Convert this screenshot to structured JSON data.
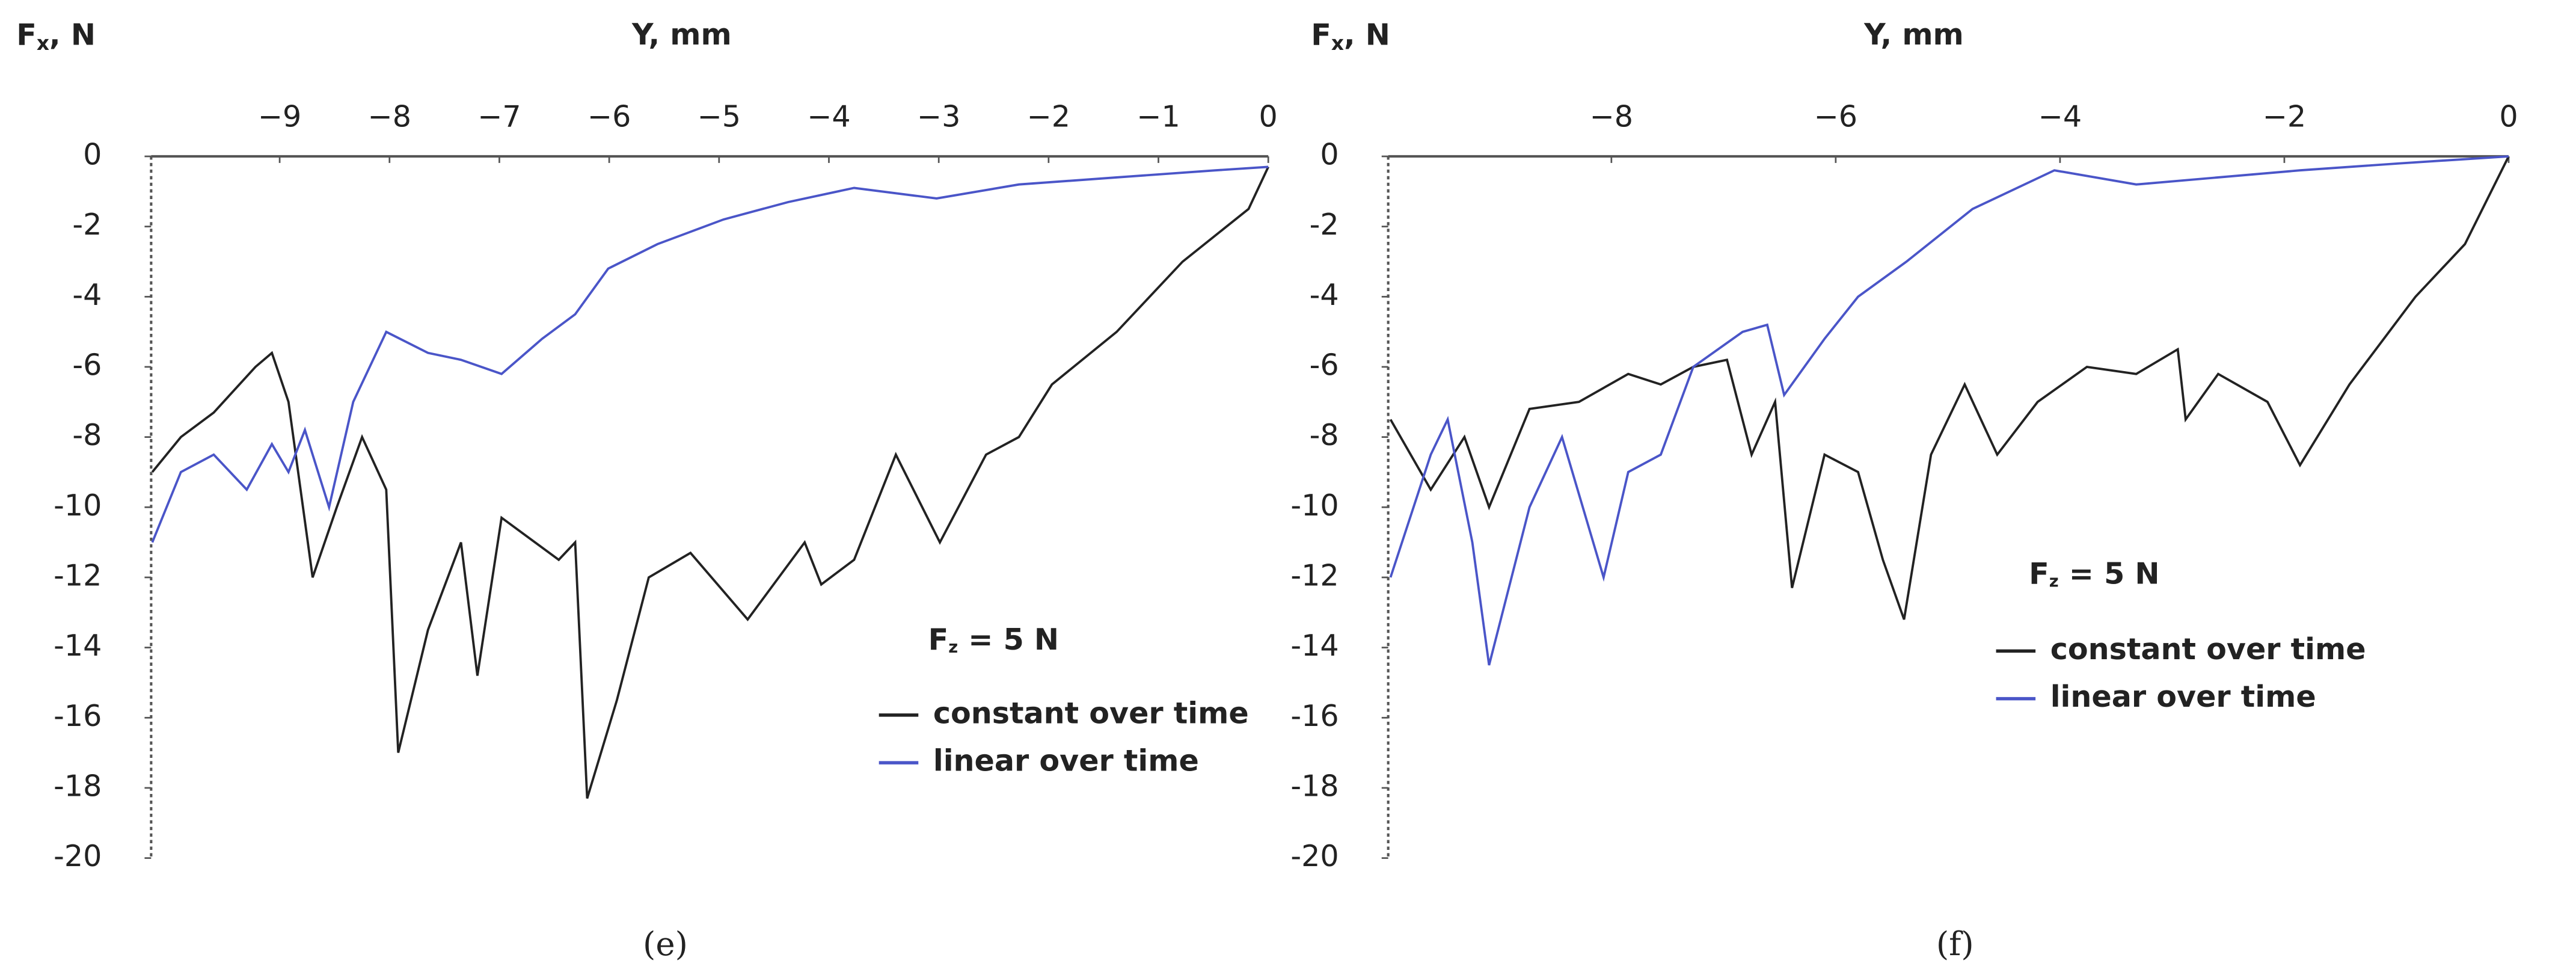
{
  "chart_data": [
    {
      "type": "line",
      "x_label": "Y, mm",
      "y_label": [
        "F",
        "x",
        ", N"
      ],
      "annotation": [
        "F",
        "z",
        " = 5 N"
      ],
      "caption": "(e)",
      "xlim": [
        -10.17,
        0
      ],
      "ylim": [
        -20,
        0
      ],
      "xticks": [
        {
          "value": -9,
          "label": "−9"
        },
        {
          "value": -8,
          "label": "−8"
        },
        {
          "value": -7,
          "label": "−7"
        },
        {
          "value": -6,
          "label": "−6"
        },
        {
          "value": -5,
          "label": "−5"
        },
        {
          "value": -4,
          "label": "−4"
        },
        {
          "value": -3,
          "label": "−3"
        },
        {
          "value": -2,
          "label": "−2"
        },
        {
          "value": -1,
          "label": "−1"
        },
        0
      ],
      "yticks": [
        0,
        -2,
        -4,
        -6,
        -8,
        -10,
        -12,
        -14,
        -16,
        -18,
        -20
      ],
      "series": [
        {
          "name": "constant over time",
          "color": "#222222",
          "x": [
            -10.16,
            -9.9,
            -9.6,
            -9.22,
            -9.07,
            -8.92,
            -8.7,
            -8.48,
            -8.25,
            -8.03,
            -7.92,
            -7.65,
            -7.35,
            -7.2,
            -6.98,
            -6.46,
            -6.31,
            -6.2,
            -5.93,
            -5.64,
            -5.26,
            -4.74,
            -4.22,
            -4.07,
            -3.77,
            -3.39,
            -2.99,
            -2.57,
            -2.27,
            -1.97,
            -1.38,
            -0.78,
            -0.18,
            0
          ],
          "values": [
            -9,
            -8,
            -7.3,
            -6,
            -5.6,
            -7,
            -12,
            -10,
            -8,
            -9.5,
            -17,
            -13.5,
            -11,
            -14.8,
            -10.3,
            -11.5,
            -11,
            -18.3,
            -15.5,
            -12,
            -11.3,
            -13.2,
            -11,
            -12.2,
            -11.5,
            -8.5,
            -11,
            -8.5,
            -8,
            -6.5,
            -5,
            -3,
            -1.5,
            -0.3
          ]
        },
        {
          "name": "linear over time",
          "color": "#4a55c8",
          "x": [
            -10.16,
            -9.9,
            -9.6,
            -9.3,
            -9.07,
            -8.92,
            -8.77,
            -8.55,
            -8.33,
            -8.03,
            -7.65,
            -7.35,
            -6.98,
            -6.61,
            -6.31,
            -6.01,
            -5.56,
            -4.96,
            -4.37,
            -3.77,
            -3.02,
            -2.27,
            -1.38,
            -0.48,
            0
          ],
          "values": [
            -11,
            -9,
            -8.5,
            -9.5,
            -8.2,
            -9,
            -7.8,
            -10,
            -7,
            -5,
            -5.6,
            -5.8,
            -6.2,
            -5.2,
            -4.5,
            -3.2,
            -2.5,
            -1.8,
            -1.3,
            -0.9,
            -1.2,
            -0.8,
            -0.6,
            -0.4,
            -0.3
          ]
        }
      ]
    },
    {
      "type": "line",
      "x_label": "Y, mm",
      "y_label": [
        "F",
        "x",
        ", N"
      ],
      "annotation": [
        "F",
        "z",
        " = 5 N"
      ],
      "caption": "(f)",
      "xlim": [
        -9.99,
        0
      ],
      "ylim": [
        -20,
        0
      ],
      "xticks": [
        {
          "value": -8,
          "label": "−8"
        },
        {
          "value": -6,
          "label": "−6"
        },
        {
          "value": -4,
          "label": "−4"
        },
        {
          "value": -2,
          "label": "−2"
        },
        0
      ],
      "yticks": [
        0,
        -2,
        -4,
        -6,
        -8,
        -10,
        -12,
        -14,
        -16,
        -18,
        -20
      ],
      "series": [
        {
          "name": "constant over time",
          "color": "#222222",
          "x": [
            -9.97,
            -9.61,
            -9.31,
            -9.09,
            -8.73,
            -8.29,
            -7.85,
            -7.56,
            -7.27,
            -6.97,
            -6.75,
            -6.54,
            -6.39,
            -6.1,
            -5.8,
            -5.58,
            -5.39,
            -5.15,
            -4.85,
            -4.56,
            -4.2,
            -3.76,
            -3.32,
            -2.95,
            -2.88,
            -2.59,
            -2.15,
            -1.86,
            -1.42,
            -0.83,
            -0.39,
            0
          ],
          "values": [
            -7.5,
            -9.5,
            -8,
            -10,
            -7.2,
            -7,
            -6.2,
            -6.5,
            -6,
            -5.8,
            -8.5,
            -7,
            -12.3,
            -8.5,
            -9,
            -11.5,
            -13.2,
            -8.5,
            -6.5,
            -8.5,
            -7,
            -6,
            -6.2,
            -5.5,
            -7.5,
            -6.2,
            -7,
            -8.8,
            -6.5,
            -4,
            -2.5,
            0
          ]
        },
        {
          "name": "linear over time",
          "color": "#4a55c8",
          "x": [
            -9.97,
            -9.61,
            -9.46,
            -9.24,
            -9.09,
            -8.73,
            -8.44,
            -8.07,
            -7.85,
            -7.56,
            -7.27,
            -6.83,
            -6.61,
            -6.46,
            -6.1,
            -5.8,
            -5.37,
            -4.78,
            -4.05,
            -3.32,
            -2.59,
            -1.86,
            -0.98,
            0
          ],
          "values": [
            -12,
            -8.5,
            -7.5,
            -11,
            -14.5,
            -10,
            -8,
            -12,
            -9,
            -8.5,
            -6,
            -5,
            -4.8,
            -6.8,
            -5.2,
            -4,
            -3,
            -1.5,
            -0.4,
            -0.8,
            -0.6,
            -0.4,
            -0.2,
            0
          ]
        }
      ]
    }
  ]
}
